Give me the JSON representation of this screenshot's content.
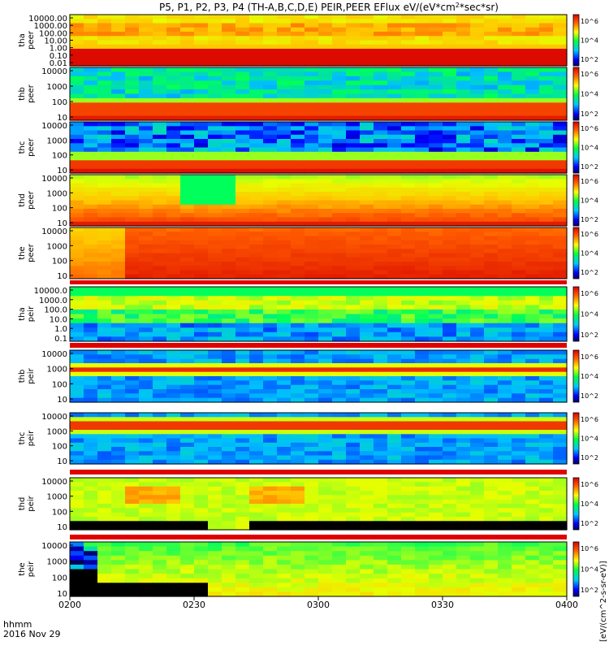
{
  "chart_data": {
    "type": "heatmap",
    "title": "P5, P1, P2, P3, P4 (TH-A,B,C,D,E) PEIR,PEER EFlux eV/(eV*cm^2*sec*sr)",
    "title_parts": [
      "P5, P1, P2, P3, P4 (TH-A,B,C,D,E) PEIR,PEER EFlux eV/(eV*cm",
      "2",
      "*sec*sr)"
    ],
    "xlabel_line1": "hhmm",
    "xlabel_line2": "2016 Nov 29",
    "x_tick_labels": [
      "0200",
      "0230",
      "0300",
      "0330",
      "0400"
    ],
    "x_range": [
      "02:00",
      "04:00"
    ],
    "colorbar_tick_labels": [
      "10^2",
      "10^4",
      "10^6"
    ],
    "colorbar_label": "[eV/(cm^2-s-sr-eV)]",
    "panels": [
      {
        "name": "tha peer",
        "ylabel": [
          "tha",
          "peer"
        ],
        "yticks": [
          "10000.00",
          "1000.00",
          "100.00",
          "10.00",
          "1.00",
          "0.10",
          "0.01"
        ]
      },
      {
        "name": "thb peer",
        "ylabel": [
          "thb",
          "peer"
        ],
        "yticks": [
          "10000",
          "1000",
          "100",
          "10"
        ]
      },
      {
        "name": "thc peer",
        "ylabel": [
          "thc",
          "peer"
        ],
        "yticks": [
          "10000",
          "1000",
          "100",
          "10"
        ]
      },
      {
        "name": "thd peer",
        "ylabel": [
          "thd",
          "peer"
        ],
        "yticks": [
          "10000",
          "1000",
          "100",
          "10"
        ]
      },
      {
        "name": "the peer",
        "ylabel": [
          "the",
          "peer"
        ],
        "yticks": [
          "10000",
          "1000",
          "100",
          "10"
        ]
      },
      {
        "name": "tha peir",
        "ylabel": [
          "tha",
          "peir"
        ],
        "yticks": [
          "10000.0",
          "1000.0",
          "100.0",
          "10.0",
          "1.0",
          "0.1"
        ]
      },
      {
        "name": "thb peir",
        "ylabel": [
          "thb",
          "peir"
        ],
        "yticks": [
          "10000",
          "1000",
          "100",
          "10"
        ]
      },
      {
        "name": "thc peir",
        "ylabel": [
          "thc",
          "peir"
        ],
        "yticks": [
          "10000",
          "1000",
          "100",
          "10"
        ]
      },
      {
        "name": "thd peir",
        "ylabel": [
          "thd",
          "peir"
        ],
        "yticks": [
          "10000",
          "1000",
          "100",
          "10"
        ]
      },
      {
        "name": "the peir",
        "ylabel": [
          "the",
          "peir"
        ],
        "yticks": [
          "10000",
          "1000",
          "100",
          "10"
        ]
      }
    ]
  }
}
